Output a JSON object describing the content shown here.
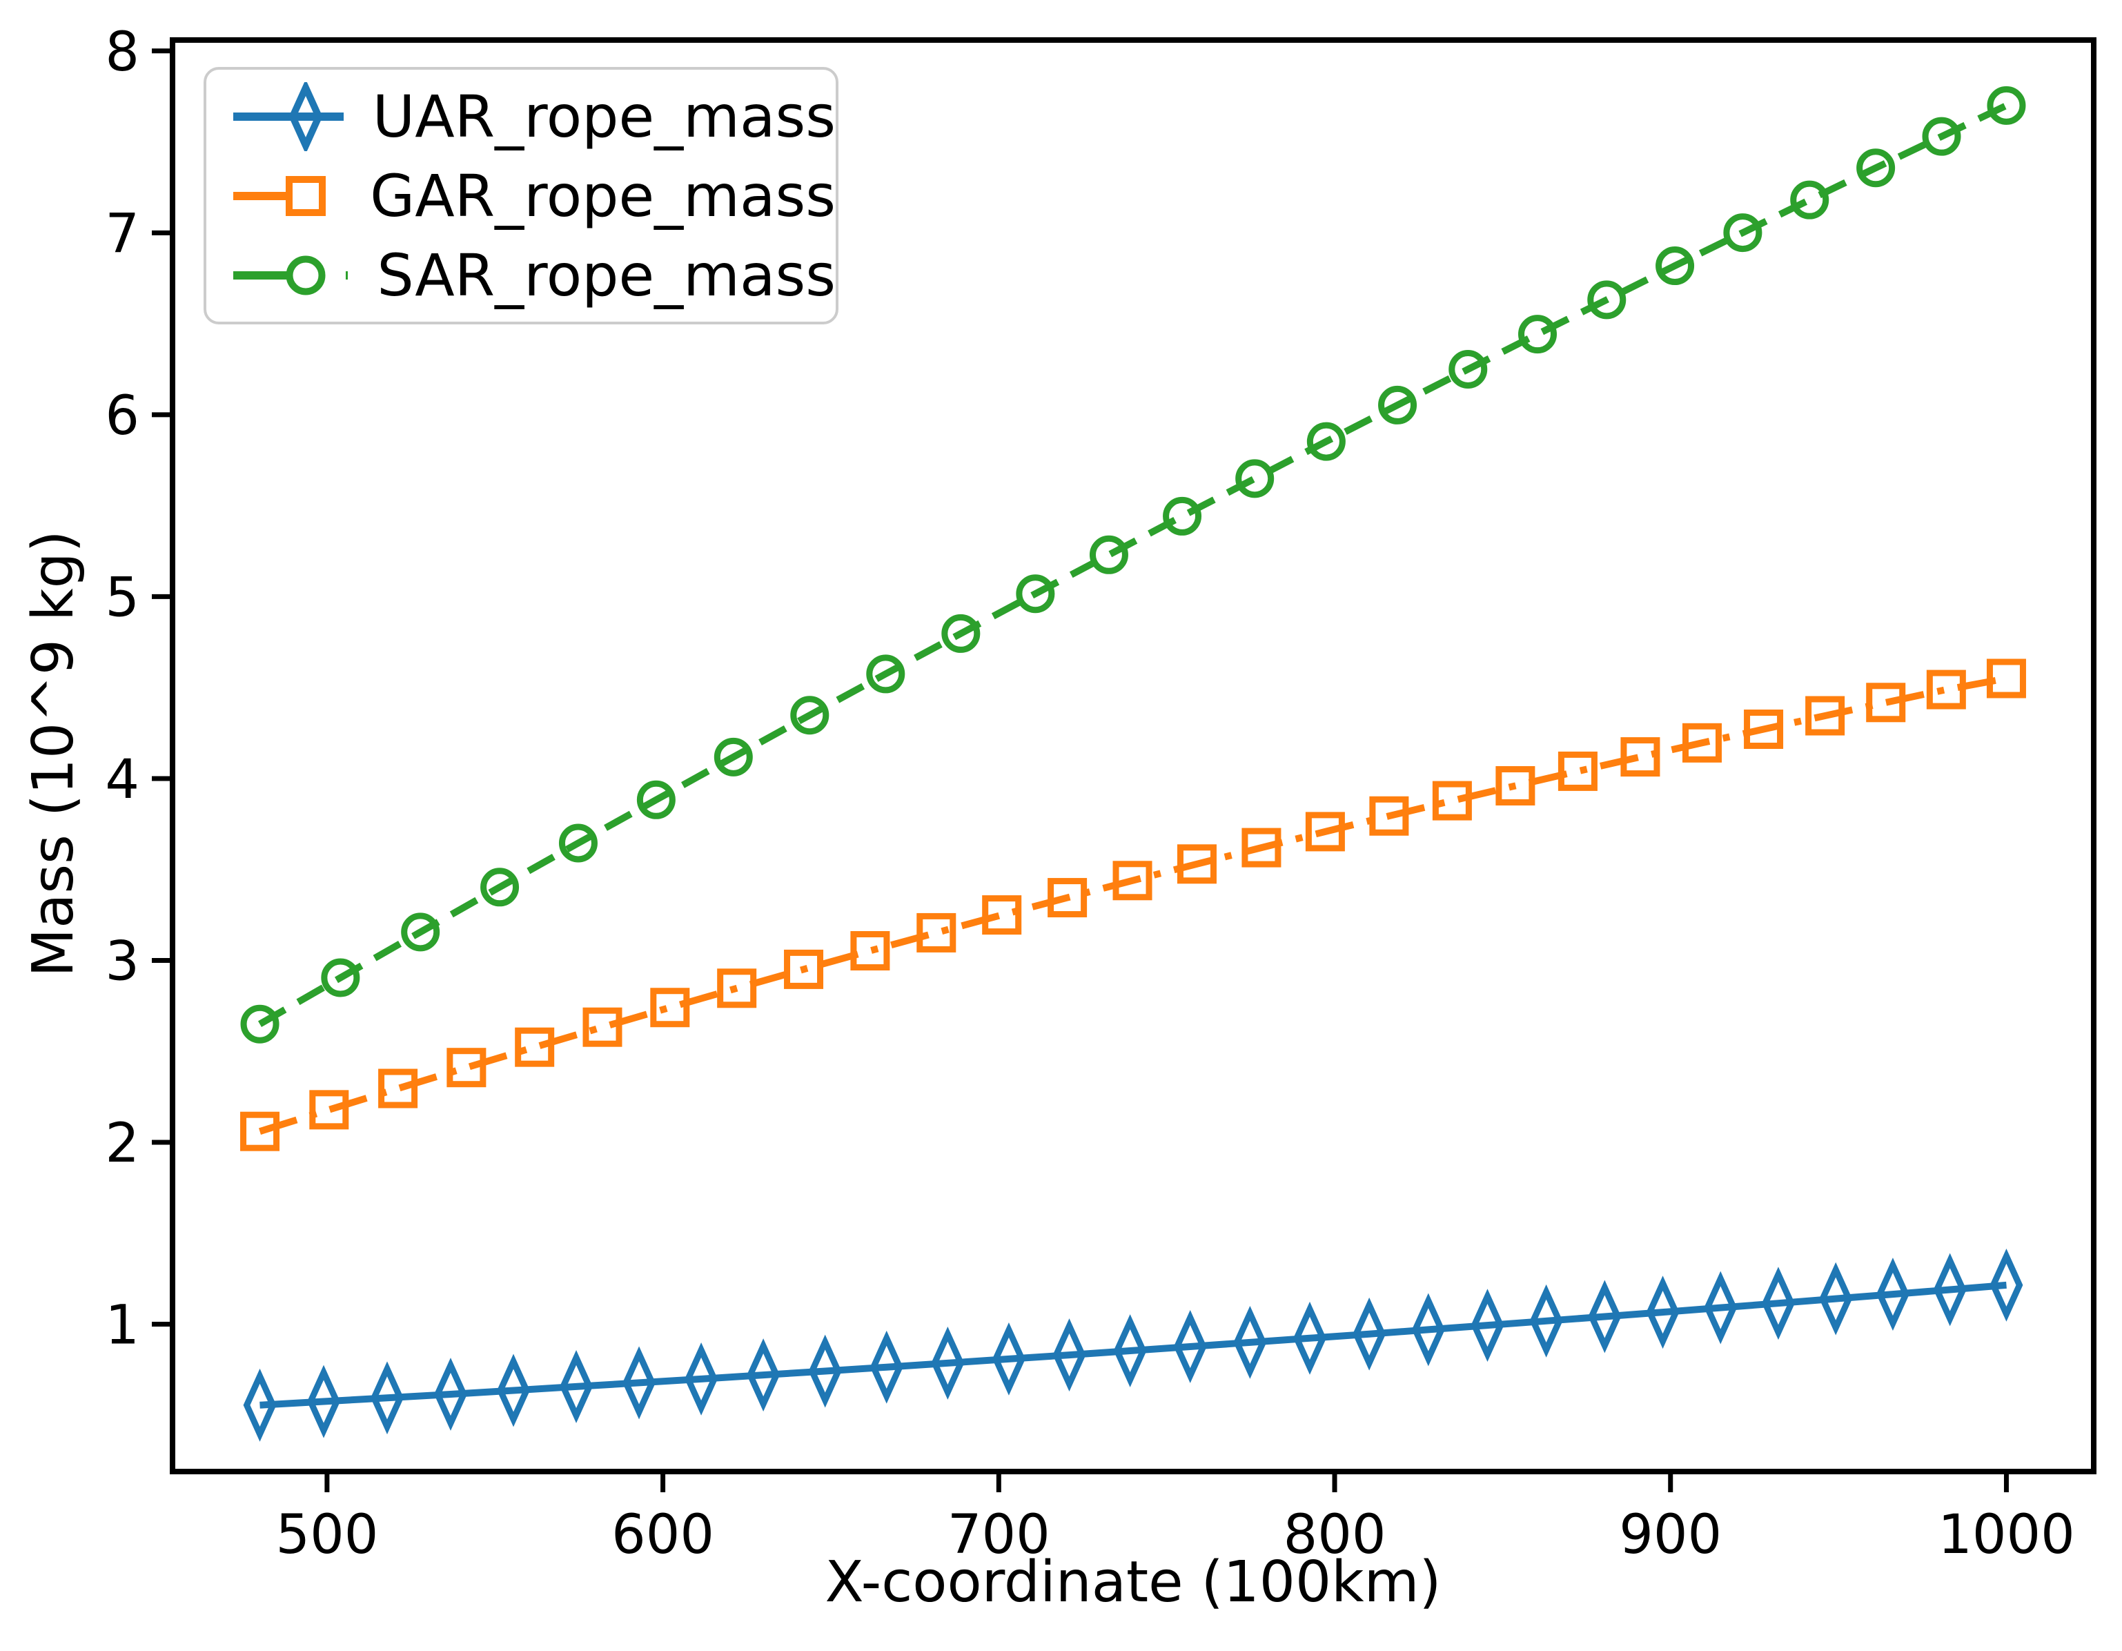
{
  "figure": {
    "background": "#ffffff",
    "axis_color": "#000000",
    "legend_border_color": "#cccccc"
  },
  "chart_data": {
    "type": "line",
    "title": "",
    "xlabel": "X-coordinate (100km)",
    "ylabel": "Mass (10^9 kg)",
    "xlim": [
      454,
      1026
    ],
    "ylim": [
      0.19,
      8.06
    ],
    "x_ticks": [
      500,
      600,
      700,
      800,
      900,
      1000
    ],
    "y_ticks": [
      1,
      2,
      3,
      4,
      5,
      6,
      7,
      8
    ],
    "grid": false,
    "legend_position": "upper left",
    "series": [
      {
        "name": "UAR_rope_mass",
        "color": "#1f77b4",
        "marker": "thin-diamond",
        "linestyle": "solid",
        "x": [
          480.0,
          499.0,
          517.9,
          536.8,
          555.5,
          574.2,
          592.9,
          611.4,
          629.9,
          648.3,
          666.6,
          684.8,
          703.0,
          721.0,
          739.1,
          757.0,
          774.8,
          792.6,
          810.3,
          827.9,
          845.5,
          863.0,
          880.4,
          897.7,
          914.9,
          932.1,
          949.2,
          966.2,
          983.2,
          1000.0
        ],
        "y": [
          0.555,
          0.575,
          0.595,
          0.615,
          0.636,
          0.657,
          0.678,
          0.699,
          0.721,
          0.742,
          0.764,
          0.786,
          0.809,
          0.831,
          0.854,
          0.877,
          0.9,
          0.923,
          0.946,
          0.97,
          0.994,
          1.018,
          1.042,
          1.066,
          1.091,
          1.115,
          1.14,
          1.165,
          1.19,
          1.215
        ]
      },
      {
        "name": "GAR_rope_mass",
        "color": "#ff7f0e",
        "marker": "square",
        "linestyle": "dashdot",
        "x": [
          480.0,
          500.6,
          521.1,
          541.5,
          561.8,
          582.0,
          602.1,
          622.0,
          641.9,
          661.7,
          681.4,
          700.9,
          720.4,
          739.8,
          759.0,
          778.2,
          797.2,
          816.2,
          835.0,
          853.8,
          872.4,
          891.0,
          909.4,
          927.7,
          946.0,
          964.1,
          982.1,
          1000.0
        ],
        "y": [
          2.06,
          2.179,
          2.296,
          2.411,
          2.523,
          2.633,
          2.741,
          2.847,
          2.951,
          3.053,
          3.152,
          3.25,
          3.345,
          3.439,
          3.53,
          3.62,
          3.708,
          3.794,
          3.878,
          3.96,
          4.04,
          4.119,
          4.196,
          4.271,
          4.345,
          4.418,
          4.489,
          4.55
        ]
      },
      {
        "name": "SAR_rope_mass",
        "color": "#2ca02c",
        "marker": "circle",
        "linestyle": "dashed",
        "x": [
          480.0,
          504.0,
          527.8,
          551.4,
          574.8,
          598.0,
          621.0,
          643.7,
          666.3,
          688.7,
          710.9,
          732.8,
          754.6,
          776.2,
          797.5,
          818.7,
          839.7,
          860.4,
          881.0,
          901.3,
          921.5,
          941.4,
          961.1,
          980.7,
          1000.0
        ],
        "y": [
          2.65,
          2.905,
          3.156,
          3.403,
          3.645,
          3.883,
          4.118,
          4.348,
          4.575,
          4.797,
          5.016,
          5.23,
          5.442,
          5.649,
          5.853,
          6.053,
          6.25,
          6.443,
          6.632,
          6.819,
          7.001,
          7.181,
          7.357,
          7.53,
          7.7
        ]
      }
    ]
  }
}
